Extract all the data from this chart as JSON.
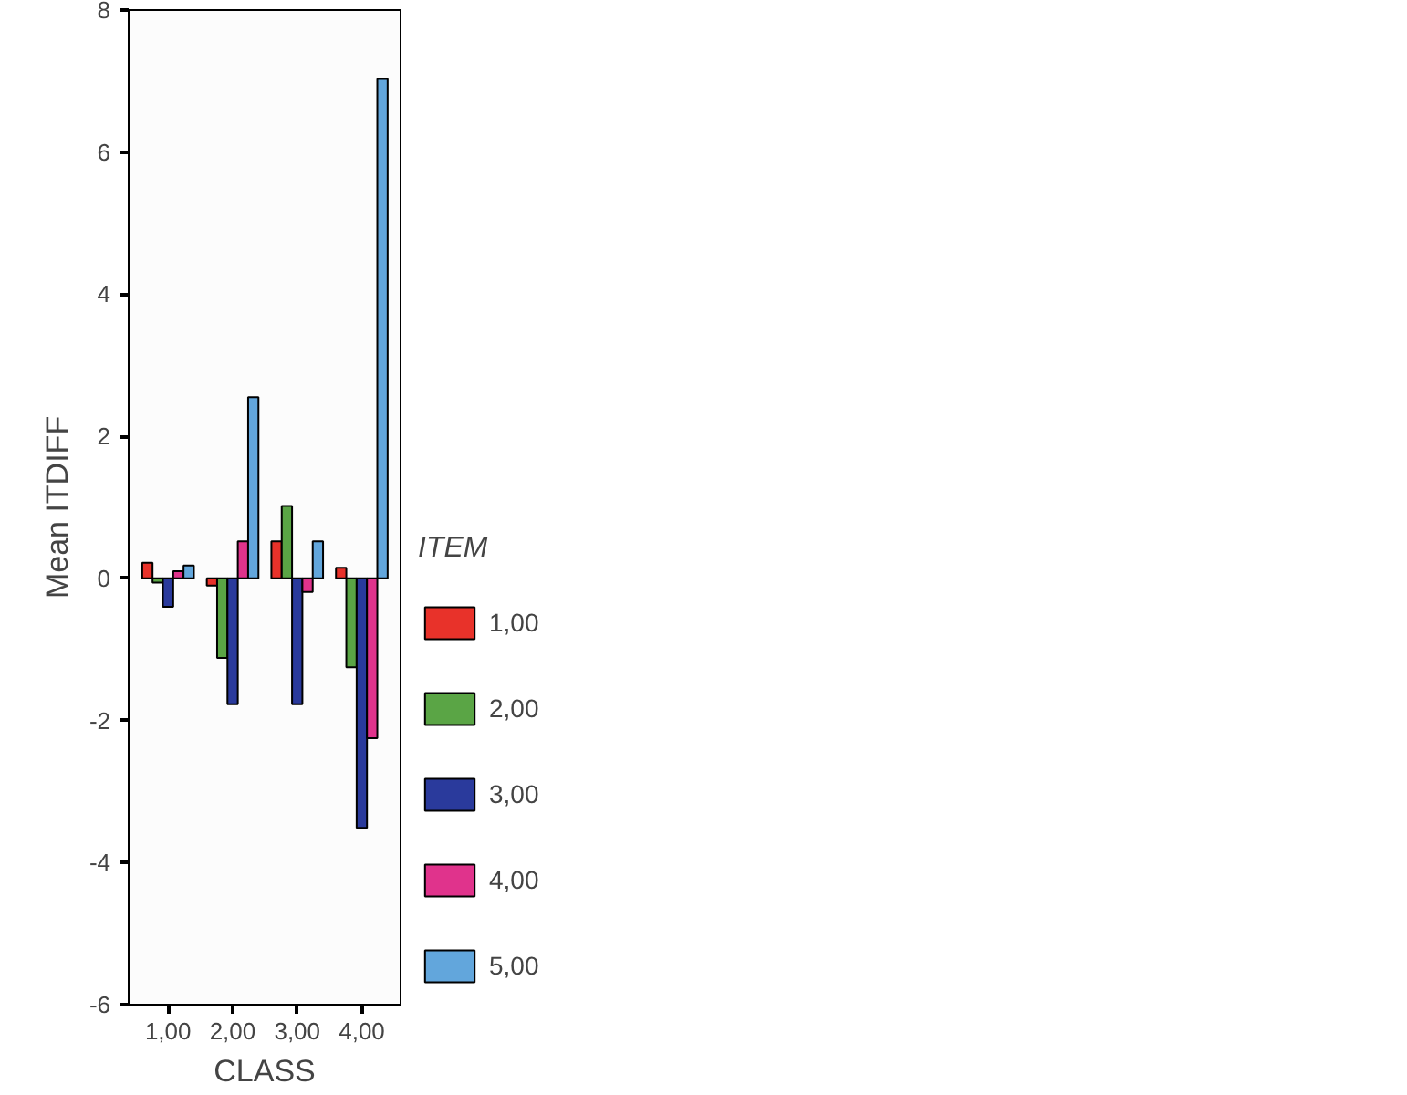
{
  "chart_data": {
    "type": "bar",
    "xlabel": "CLASS",
    "ylabel": "Mean ITDIFF",
    "legend_title": "ITEM",
    "categories": [
      "1,00",
      "2,00",
      "3,00",
      "4,00"
    ],
    "series": [
      {
        "name": "1,00",
        "color": "#e8322a",
        "values": [
          0.22,
          -0.1,
          0.52,
          0.15
        ]
      },
      {
        "name": "2,00",
        "color": "#5aa545",
        "values": [
          -0.06,
          -1.12,
          1.02,
          -1.25
        ]
      },
      {
        "name": "3,00",
        "color": "#2a3a9c",
        "values": [
          -0.4,
          -1.77,
          -1.77,
          -3.51
        ]
      },
      {
        "name": "4,00",
        "color": "#e0338c",
        "values": [
          0.1,
          0.52,
          -0.19,
          -2.25
        ]
      },
      {
        "name": "5,00",
        "color": "#62a6dc",
        "values": [
          0.18,
          2.55,
          0.52,
          7.03
        ]
      }
    ],
    "ylim": [
      -6,
      8
    ],
    "yticks": [
      -6,
      -4,
      -2,
      0,
      2,
      4,
      6,
      8
    ],
    "grid": false,
    "legend": "right"
  }
}
